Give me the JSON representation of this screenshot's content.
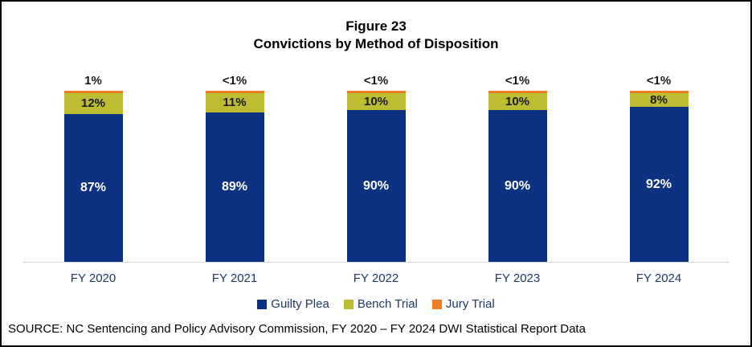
{
  "title": {
    "line1": "Figure 23",
    "line2": "Convictions by Method of Disposition"
  },
  "chart_data": {
    "type": "bar",
    "stacked": true,
    "title": "Figure 23 — Convictions by Method of Disposition",
    "categories": [
      "FY 2020",
      "FY 2021",
      "FY 2022",
      "FY 2023",
      "FY 2024"
    ],
    "series": [
      {
        "name": "Guilty Plea",
        "color": "#0d3282",
        "values": [
          87,
          89,
          90,
          90,
          92
        ],
        "labels": [
          "87%",
          "89%",
          "90%",
          "90%",
          "92%"
        ]
      },
      {
        "name": "Bench Trial",
        "color": "#bdbd33",
        "values": [
          12,
          11,
          10,
          10,
          8
        ],
        "labels": [
          "12%",
          "11%",
          "10%",
          "10%",
          "8%"
        ]
      },
      {
        "name": "Jury Trial",
        "color": "#ee7d23",
        "values": [
          1,
          0.5,
          0.5,
          0.5,
          0.5
        ],
        "labels": [
          "1%",
          "<1%",
          "<1%",
          "<1%",
          "<1%"
        ]
      }
    ],
    "ylim": [
      0,
      100
    ],
    "grid": false,
    "legend_position": "bottom",
    "axis_line_color": "#d6d6d6"
  },
  "source": "SOURCE: NC Sentencing and Policy Advisory Commission, FY 2020 – FY 2024 DWI Statistical Report Data"
}
